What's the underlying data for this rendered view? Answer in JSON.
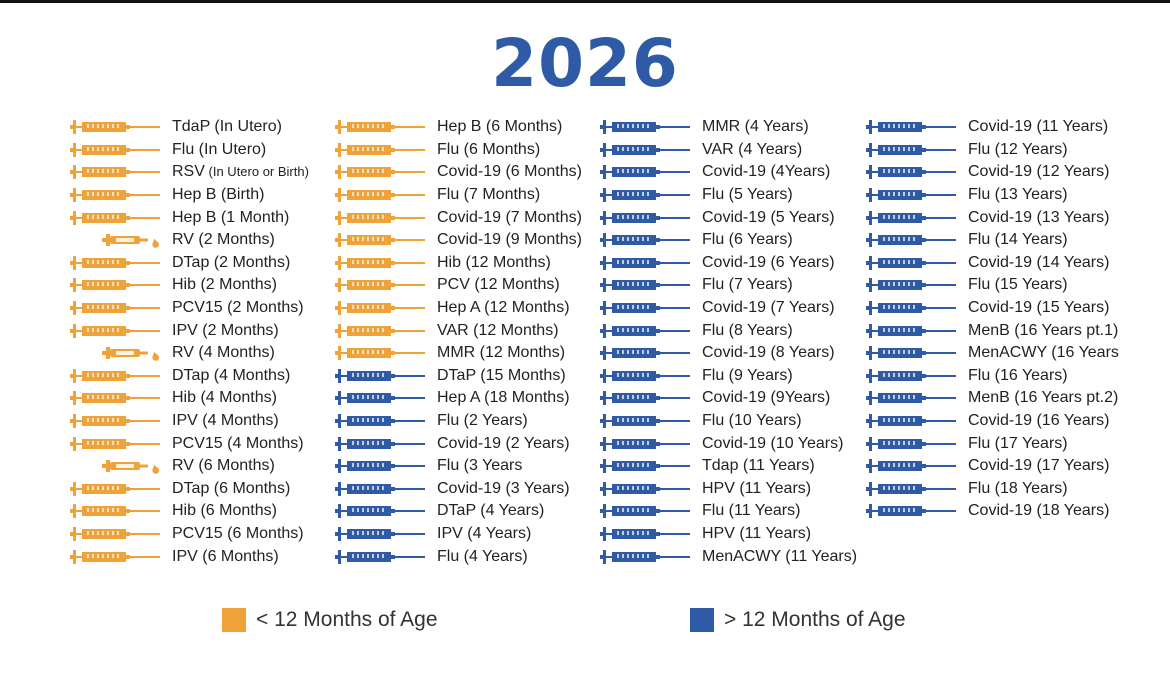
{
  "title": "2026",
  "colors": {
    "under12": "#f0a23a",
    "over12": "#2e5aa6",
    "title": "#2e5aa6"
  },
  "columns": [
    {
      "items": [
        {
          "label": "TdaP (In Utero)",
          "group": "under12",
          "icon": "syringe-icon"
        },
        {
          "label": "Flu (In Utero)",
          "group": "under12",
          "icon": "syringe-icon"
        },
        {
          "label": "RSV",
          "label_small": " (In Utero or Birth)",
          "group": "under12",
          "icon": "syringe-icon"
        },
        {
          "label": "Hep B (Birth)",
          "group": "under12",
          "icon": "syringe-icon"
        },
        {
          "label": "Hep B (1 Month)",
          "group": "under12",
          "icon": "syringe-icon"
        },
        {
          "label": "RV (2 Months)",
          "group": "under12",
          "icon": "oral-dropper-icon"
        },
        {
          "label": "DTap (2 Months)",
          "group": "under12",
          "icon": "syringe-icon"
        },
        {
          "label": "Hib (2 Months)",
          "group": "under12",
          "icon": "syringe-icon"
        },
        {
          "label": "PCV15 (2 Months)",
          "group": "under12",
          "icon": "syringe-icon"
        },
        {
          "label": "IPV (2 Months)",
          "group": "under12",
          "icon": "syringe-icon"
        },
        {
          "label": "RV (4 Months)",
          "group": "under12",
          "icon": "oral-dropper-icon"
        },
        {
          "label": "DTap (4 Months)",
          "group": "under12",
          "icon": "syringe-icon"
        },
        {
          "label": "Hib (4 Months)",
          "group": "under12",
          "icon": "syringe-icon"
        },
        {
          "label": "IPV (4 Months)",
          "group": "under12",
          "icon": "syringe-icon"
        },
        {
          "label": "PCV15 (4 Months)",
          "group": "under12",
          "icon": "syringe-icon"
        },
        {
          "label": "RV (6 Months)",
          "group": "under12",
          "icon": "oral-dropper-icon"
        },
        {
          "label": "DTap (6 Months)",
          "group": "under12",
          "icon": "syringe-icon"
        },
        {
          "label": "Hib (6 Months)",
          "group": "under12",
          "icon": "syringe-icon"
        },
        {
          "label": "PCV15 (6 Months)",
          "group": "under12",
          "icon": "syringe-icon"
        },
        {
          "label": "IPV (6 Months)",
          "group": "under12",
          "icon": "syringe-icon"
        }
      ]
    },
    {
      "items": [
        {
          "label": "Hep B (6 Months)",
          "group": "under12",
          "icon": "syringe-icon"
        },
        {
          "label": "Flu (6 Months)",
          "group": "under12",
          "icon": "syringe-icon"
        },
        {
          "label": "Covid-19 (6 Months)",
          "group": "under12",
          "icon": "syringe-icon"
        },
        {
          "label": "Flu (7 Months)",
          "group": "under12",
          "icon": "syringe-icon"
        },
        {
          "label": "Covid-19 (7 Months)",
          "group": "under12",
          "icon": "syringe-icon"
        },
        {
          "label": "Covid-19 (9 Months)",
          "group": "under12",
          "icon": "syringe-icon"
        },
        {
          "label": "Hib (12 Months)",
          "group": "under12",
          "icon": "syringe-icon"
        },
        {
          "label": "PCV (12 Months)",
          "group": "under12",
          "icon": "syringe-icon"
        },
        {
          "label": "Hep A (12 Months)",
          "group": "under12",
          "icon": "syringe-icon"
        },
        {
          "label": "VAR (12 Months)",
          "group": "under12",
          "icon": "syringe-icon"
        },
        {
          "label": "MMR (12 Months)",
          "group": "under12",
          "icon": "syringe-icon"
        },
        {
          "label": "DTaP (15 Months)",
          "group": "over12",
          "icon": "syringe-icon"
        },
        {
          "label": "Hep A (18 Months)",
          "group": "over12",
          "icon": "syringe-icon"
        },
        {
          "label": "Flu (2 Years)",
          "group": "over12",
          "icon": "syringe-icon"
        },
        {
          "label": "Covid-19 (2 Years)",
          "group": "over12",
          "icon": "syringe-icon"
        },
        {
          "label": "Flu (3 Years",
          "group": "over12",
          "icon": "syringe-icon"
        },
        {
          "label": "Covid-19 (3 Years)",
          "group": "over12",
          "icon": "syringe-icon"
        },
        {
          "label": "DTaP (4 Years)",
          "group": "over12",
          "icon": "syringe-icon"
        },
        {
          "label": "IPV (4 Years)",
          "group": "over12",
          "icon": "syringe-icon"
        },
        {
          "label": "Flu (4 Years)",
          "group": "over12",
          "icon": "syringe-icon"
        }
      ]
    },
    {
      "items": [
        {
          "label": "MMR (4 Years)",
          "group": "over12",
          "icon": "syringe-icon"
        },
        {
          "label": "VAR (4 Years)",
          "group": "over12",
          "icon": "syringe-icon"
        },
        {
          "label": "Covid-19 (4Years)",
          "group": "over12",
          "icon": "syringe-icon"
        },
        {
          "label": "Flu (5 Years)",
          "group": "over12",
          "icon": "syringe-icon"
        },
        {
          "label": "Covid-19 (5 Years)",
          "group": "over12",
          "icon": "syringe-icon"
        },
        {
          "label": "Flu (6 Years)",
          "group": "over12",
          "icon": "syringe-icon"
        },
        {
          "label": "Covid-19 (6 Years)",
          "group": "over12",
          "icon": "syringe-icon"
        },
        {
          "label": "Flu (7 Years)",
          "group": "over12",
          "icon": "syringe-icon"
        },
        {
          "label": "Covid-19 (7 Years)",
          "group": "over12",
          "icon": "syringe-icon"
        },
        {
          "label": "Flu (8 Years)",
          "group": "over12",
          "icon": "syringe-icon"
        },
        {
          "label": "Covid-19 (8 Years)",
          "group": "over12",
          "icon": "syringe-icon"
        },
        {
          "label": "Flu (9 Years)",
          "group": "over12",
          "icon": "syringe-icon"
        },
        {
          "label": "Covid-19 (9Years)",
          "group": "over12",
          "icon": "syringe-icon"
        },
        {
          "label": "Flu (10 Years)",
          "group": "over12",
          "icon": "syringe-icon"
        },
        {
          "label": "Covid-19 (10 Years)",
          "group": "over12",
          "icon": "syringe-icon"
        },
        {
          "label": "Tdap (11 Years)",
          "group": "over12",
          "icon": "syringe-icon"
        },
        {
          "label": "HPV (11 Years)",
          "group": "over12",
          "icon": "syringe-icon"
        },
        {
          "label": "Flu (11 Years)",
          "group": "over12",
          "icon": "syringe-icon"
        },
        {
          "label": "HPV (11 Years)",
          "group": "over12",
          "icon": "syringe-icon"
        },
        {
          "label": "MenACWY (11 Years)",
          "group": "over12",
          "icon": "syringe-icon"
        }
      ]
    },
    {
      "items": [
        {
          "label": "Covid-19 (11 Years)",
          "group": "over12",
          "icon": "syringe-icon"
        },
        {
          "label": "Flu (12 Years)",
          "group": "over12",
          "icon": "syringe-icon"
        },
        {
          "label": "Covid-19 (12 Years)",
          "group": "over12",
          "icon": "syringe-icon"
        },
        {
          "label": "Flu (13 Years)",
          "group": "over12",
          "icon": "syringe-icon"
        },
        {
          "label": "Covid-19 (13 Years)",
          "group": "over12",
          "icon": "syringe-icon"
        },
        {
          "label": "Flu (14 Years)",
          "group": "over12",
          "icon": "syringe-icon"
        },
        {
          "label": "Covid-19 (14 Years)",
          "group": "over12",
          "icon": "syringe-icon"
        },
        {
          "label": "Flu (15 Years)",
          "group": "over12",
          "icon": "syringe-icon"
        },
        {
          "label": "Covid-19 (15 Years)",
          "group": "over12",
          "icon": "syringe-icon"
        },
        {
          "label": "MenB (16 Years pt.1)",
          "group": "over12",
          "icon": "syringe-icon"
        },
        {
          "label": "MenACWY (16 Years",
          "group": "over12",
          "icon": "syringe-icon"
        },
        {
          "label": "Flu (16 Years)",
          "group": "over12",
          "icon": "syringe-icon"
        },
        {
          "label": "MenB (16 Years pt.2)",
          "group": "over12",
          "icon": "syringe-icon"
        },
        {
          "label": "Covid-19 (16 Years)",
          "group": "over12",
          "icon": "syringe-icon"
        },
        {
          "label": "Flu (17 Years)",
          "group": "over12",
          "icon": "syringe-icon"
        },
        {
          "label": "Covid-19 (17 Years)",
          "group": "over12",
          "icon": "syringe-icon"
        },
        {
          "label": "Flu (18 Years)",
          "group": "over12",
          "icon": "syringe-icon"
        },
        {
          "label": "Covid-19 (18 Years)",
          "group": "over12",
          "icon": "syringe-icon"
        }
      ]
    }
  ],
  "legend": [
    {
      "label": "< 12 Months of Age",
      "group": "under12"
    },
    {
      "label": "> 12 Months of Age",
      "group": "over12"
    }
  ]
}
